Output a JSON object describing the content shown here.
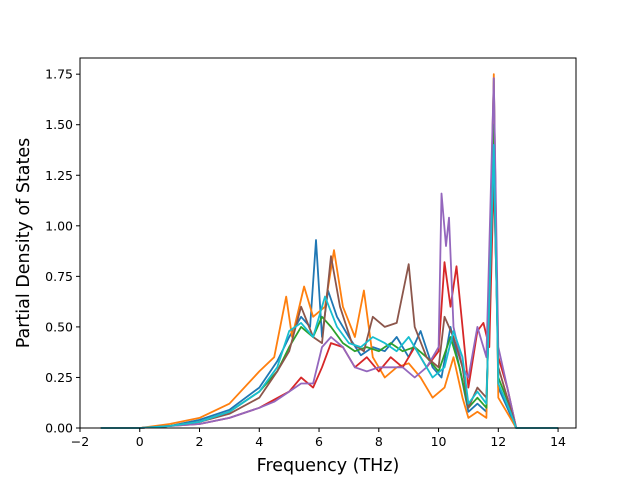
{
  "chart_data": {
    "type": "line",
    "title": "",
    "xlabel": "Frequency (THz)",
    "ylabel": "Partial Density of States",
    "xlim": [
      -2,
      14.6
    ],
    "ylim": [
      0,
      1.83
    ],
    "xticks": [
      -2,
      0,
      2,
      4,
      6,
      8,
      10,
      12,
      14
    ],
    "xtick_labels": [
      "−2",
      "0",
      "2",
      "4",
      "6",
      "8",
      "10",
      "12",
      "14"
    ],
    "yticks": [
      0,
      0.25,
      0.5,
      0.75,
      1.0,
      1.25,
      1.5,
      1.75
    ],
    "ytick_labels": [
      "0.00",
      "0.25",
      "0.50",
      "0.75",
      "1.00",
      "1.25",
      "1.50",
      "1.75"
    ],
    "grid": false,
    "legend": "none",
    "series": [
      {
        "color": "#1f77b4",
        "points": [
          [
            -1.3,
            0
          ],
          [
            0,
            0
          ],
          [
            1,
            0.01
          ],
          [
            2,
            0.04
          ],
          [
            3,
            0.09
          ],
          [
            4,
            0.2
          ],
          [
            4.6,
            0.33
          ],
          [
            5,
            0.45
          ],
          [
            5.4,
            0.55
          ],
          [
            5.7,
            0.5
          ],
          [
            5.9,
            0.93
          ],
          [
            6.1,
            0.45
          ],
          [
            6.3,
            0.68
          ],
          [
            6.6,
            0.55
          ],
          [
            7,
            0.45
          ],
          [
            7.4,
            0.36
          ],
          [
            7.8,
            0.4
          ],
          [
            8.2,
            0.38
          ],
          [
            8.6,
            0.45
          ],
          [
            9,
            0.35
          ],
          [
            9.4,
            0.48
          ],
          [
            9.8,
            0.3
          ],
          [
            10.1,
            0.25
          ],
          [
            10.4,
            0.5
          ],
          [
            10.7,
            0.3
          ],
          [
            11,
            0.08
          ],
          [
            11.3,
            0.12
          ],
          [
            11.6,
            0.08
          ],
          [
            11.85,
            1.73
          ],
          [
            12,
            0.2
          ],
          [
            12.3,
            0.1
          ],
          [
            12.6,
            0
          ],
          [
            14,
            0
          ]
        ]
      },
      {
        "color": "#ff7f0e",
        "points": [
          [
            -1.3,
            0
          ],
          [
            0,
            0
          ],
          [
            1,
            0.02
          ],
          [
            2,
            0.05
          ],
          [
            3,
            0.12
          ],
          [
            4,
            0.28
          ],
          [
            4.5,
            0.35
          ],
          [
            4.9,
            0.65
          ],
          [
            5.1,
            0.45
          ],
          [
            5.5,
            0.7
          ],
          [
            5.8,
            0.55
          ],
          [
            6.2,
            0.6
          ],
          [
            6.5,
            0.88
          ],
          [
            6.8,
            0.6
          ],
          [
            7.2,
            0.45
          ],
          [
            7.5,
            0.68
          ],
          [
            7.8,
            0.35
          ],
          [
            8.2,
            0.25
          ],
          [
            8.6,
            0.3
          ],
          [
            9,
            0.32
          ],
          [
            9.4,
            0.25
          ],
          [
            9.8,
            0.15
          ],
          [
            10.2,
            0.2
          ],
          [
            10.5,
            0.35
          ],
          [
            10.8,
            0.15
          ],
          [
            11,
            0.05
          ],
          [
            11.3,
            0.08
          ],
          [
            11.6,
            0.05
          ],
          [
            11.85,
            1.75
          ],
          [
            12,
            0.15
          ],
          [
            12.4,
            0.05
          ],
          [
            12.6,
            0
          ],
          [
            14,
            0
          ]
        ]
      },
      {
        "color": "#2ca02c",
        "points": [
          [
            -1.3,
            0
          ],
          [
            0,
            0
          ],
          [
            1,
            0.01
          ],
          [
            2,
            0.03
          ],
          [
            3,
            0.08
          ],
          [
            4,
            0.18
          ],
          [
            4.6,
            0.28
          ],
          [
            5,
            0.4
          ],
          [
            5.4,
            0.5
          ],
          [
            5.8,
            0.45
          ],
          [
            6.1,
            0.55
          ],
          [
            6.4,
            0.5
          ],
          [
            6.8,
            0.42
          ],
          [
            7.2,
            0.38
          ],
          [
            7.6,
            0.4
          ],
          [
            8,
            0.38
          ],
          [
            8.4,
            0.42
          ],
          [
            8.8,
            0.38
          ],
          [
            9.2,
            0.4
          ],
          [
            9.6,
            0.35
          ],
          [
            10,
            0.28
          ],
          [
            10.4,
            0.45
          ],
          [
            10.7,
            0.3
          ],
          [
            11,
            0.1
          ],
          [
            11.3,
            0.15
          ],
          [
            11.6,
            0.1
          ],
          [
            11.85,
            1.5
          ],
          [
            12,
            0.25
          ],
          [
            12.4,
            0.1
          ],
          [
            12.6,
            0
          ],
          [
            14,
            0
          ]
        ]
      },
      {
        "color": "#d62728",
        "points": [
          [
            -1.3,
            0
          ],
          [
            0,
            0
          ],
          [
            1,
            0.01
          ],
          [
            2,
            0.02
          ],
          [
            3,
            0.05
          ],
          [
            4,
            0.1
          ],
          [
            4.5,
            0.14
          ],
          [
            5,
            0.18
          ],
          [
            5.4,
            0.25
          ],
          [
            5.8,
            0.2
          ],
          [
            6.1,
            0.3
          ],
          [
            6.4,
            0.42
          ],
          [
            6.8,
            0.4
          ],
          [
            7.2,
            0.3
          ],
          [
            7.6,
            0.35
          ],
          [
            8,
            0.28
          ],
          [
            8.4,
            0.35
          ],
          [
            8.8,
            0.3
          ],
          [
            9.2,
            0.4
          ],
          [
            9.6,
            0.3
          ],
          [
            10,
            0.38
          ],
          [
            10.2,
            0.82
          ],
          [
            10.4,
            0.6
          ],
          [
            10.6,
            0.8
          ],
          [
            10.8,
            0.5
          ],
          [
            11,
            0.2
          ],
          [
            11.3,
            0.48
          ],
          [
            11.5,
            0.52
          ],
          [
            11.7,
            0.4
          ],
          [
            11.85,
            1.25
          ],
          [
            12,
            0.35
          ],
          [
            12.3,
            0.2
          ],
          [
            12.6,
            0
          ],
          [
            14,
            0
          ]
        ]
      },
      {
        "color": "#9467bd",
        "points": [
          [
            -1.3,
            0
          ],
          [
            0,
            0
          ],
          [
            1,
            0.01
          ],
          [
            2,
            0.02
          ],
          [
            3,
            0.05
          ],
          [
            4,
            0.1
          ],
          [
            4.5,
            0.13
          ],
          [
            5,
            0.18
          ],
          [
            5.4,
            0.22
          ],
          [
            5.8,
            0.22
          ],
          [
            6.1,
            0.4
          ],
          [
            6.4,
            0.45
          ],
          [
            6.8,
            0.4
          ],
          [
            7.2,
            0.3
          ],
          [
            7.6,
            0.28
          ],
          [
            8,
            0.3
          ],
          [
            8.4,
            0.3
          ],
          [
            8.8,
            0.3
          ],
          [
            9.2,
            0.25
          ],
          [
            9.6,
            0.3
          ],
          [
            10,
            0.4
          ],
          [
            10.1,
            1.16
          ],
          [
            10.25,
            0.9
          ],
          [
            10.35,
            1.04
          ],
          [
            10.5,
            0.5
          ],
          [
            10.8,
            0.3
          ],
          [
            11,
            0.25
          ],
          [
            11.3,
            0.5
          ],
          [
            11.6,
            0.35
          ],
          [
            11.85,
            1.73
          ],
          [
            12,
            0.4
          ],
          [
            12.3,
            0.2
          ],
          [
            12.6,
            0
          ],
          [
            14,
            0
          ]
        ]
      },
      {
        "color": "#8c564b",
        "points": [
          [
            -1.3,
            0
          ],
          [
            0,
            0
          ],
          [
            1,
            0.01
          ],
          [
            2,
            0.03
          ],
          [
            3,
            0.07
          ],
          [
            4,
            0.15
          ],
          [
            4.6,
            0.28
          ],
          [
            5,
            0.38
          ],
          [
            5.4,
            0.6
          ],
          [
            5.8,
            0.45
          ],
          [
            6.1,
            0.42
          ],
          [
            6.4,
            0.85
          ],
          [
            6.7,
            0.6
          ],
          [
            7.1,
            0.42
          ],
          [
            7.5,
            0.38
          ],
          [
            7.8,
            0.55
          ],
          [
            8.2,
            0.5
          ],
          [
            8.6,
            0.52
          ],
          [
            9,
            0.81
          ],
          [
            9.2,
            0.5
          ],
          [
            9.6,
            0.35
          ],
          [
            10,
            0.3
          ],
          [
            10.2,
            0.55
          ],
          [
            10.5,
            0.45
          ],
          [
            10.8,
            0.3
          ],
          [
            11,
            0.1
          ],
          [
            11.3,
            0.2
          ],
          [
            11.6,
            0.15
          ],
          [
            11.85,
            1.3
          ],
          [
            12,
            0.3
          ],
          [
            12.3,
            0.15
          ],
          [
            12.6,
            0
          ],
          [
            14,
            0
          ]
        ]
      },
      {
        "color": "#17becf",
        "points": [
          [
            -1.3,
            0
          ],
          [
            0,
            0
          ],
          [
            1,
            0.01
          ],
          [
            2,
            0.03
          ],
          [
            3,
            0.08
          ],
          [
            4,
            0.18
          ],
          [
            4.6,
            0.3
          ],
          [
            5,
            0.48
          ],
          [
            5.4,
            0.52
          ],
          [
            5.8,
            0.45
          ],
          [
            6.2,
            0.65
          ],
          [
            6.6,
            0.5
          ],
          [
            7,
            0.42
          ],
          [
            7.4,
            0.4
          ],
          [
            7.8,
            0.45
          ],
          [
            8.2,
            0.42
          ],
          [
            8.6,
            0.38
          ],
          [
            9,
            0.45
          ],
          [
            9.4,
            0.35
          ],
          [
            9.8,
            0.25
          ],
          [
            10.2,
            0.3
          ],
          [
            10.5,
            0.48
          ],
          [
            10.8,
            0.35
          ],
          [
            11,
            0.12
          ],
          [
            11.3,
            0.18
          ],
          [
            11.6,
            0.12
          ],
          [
            11.85,
            1.4
          ],
          [
            12,
            0.22
          ],
          [
            12.4,
            0.08
          ],
          [
            12.6,
            0
          ],
          [
            14,
            0
          ]
        ]
      }
    ]
  }
}
